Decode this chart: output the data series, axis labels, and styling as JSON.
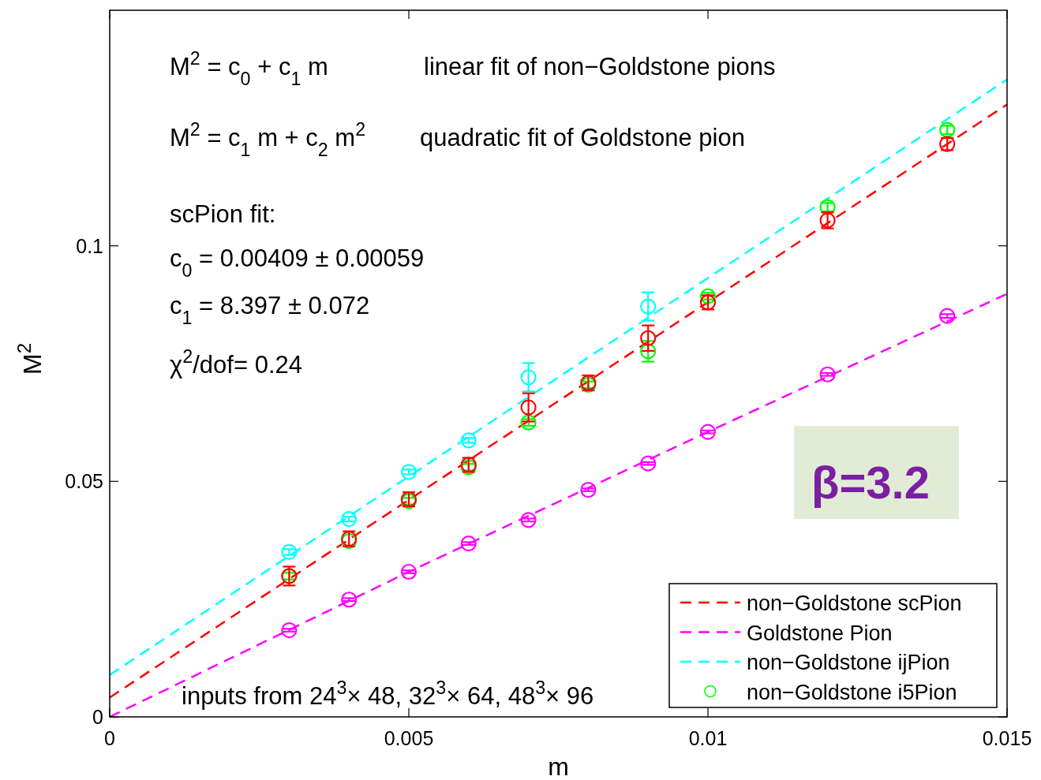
{
  "chart_data": {
    "type": "scatter",
    "xlabel": "m",
    "ylabel": "M$^{2}$",
    "xlim": [
      0,
      0.015
    ],
    "ylim": [
      0,
      0.15
    ],
    "xticks": [
      0,
      0.005,
      0.01,
      0.015
    ],
    "yticks": [
      0,
      0.05,
      0.1
    ],
    "grid": false,
    "legend": "bottom right",
    "annotations": [
      "M$^{2}$ = c$_{0}$ + c$_{1}$ m",
      "linear fit of non−Goldstone pions",
      "M$^{2}$ = c$_{1}$ m + c$_{2}$ m$^{2}$",
      "quadratic fit of Goldstone pion",
      "scPion fit:",
      "c$_{0}$ =  0.00409 ± 0.00059",
      "c$_{1}$ =  8.397 ± 0.072",
      "χ$^{2}$/dof= 0.24",
      "inputs from 24$^{3}$× 48, 32$^{3}$× 64, 48$^{3}$× 96",
      "β=3.2"
    ],
    "series": [
      {
        "type": "line",
        "name": "non−Goldstone scPion",
        "color": "#ff0000",
        "line_style": "dashed",
        "x": [
          0,
          0.015
        ],
        "values": [
          0.0041,
          0.13
        ],
        "marker": "none"
      },
      {
        "type": "line",
        "name": "Goldstone Pion",
        "color": "#ff00ff",
        "line_style": "dashed",
        "x": [
          0,
          0.005,
          0.01,
          0.015
        ],
        "values": [
          0,
          0.0308,
          0.0605,
          0.0898
        ],
        "marker": "none"
      },
      {
        "type": "line",
        "name": "non−Goldstone ijPion",
        "color": "#00ffff",
        "line_style": "dashed",
        "x": [
          0,
          0.015
        ],
        "values": [
          0.0089,
          0.1353
        ],
        "marker": "none"
      },
      {
        "type": "scatter",
        "name": "non−Goldstone i5Pion",
        "color": "#00ff00",
        "marker": "circle",
        "x": [
          0.003,
          0.004,
          0.005,
          0.006,
          0.007,
          0.008,
          0.009,
          0.01,
          0.012,
          0.014
        ],
        "values": [
          0.0299,
          0.0373,
          0.0458,
          0.053,
          0.0625,
          0.0705,
          0.0776,
          0.0893,
          0.1082,
          0.1246
        ],
        "errors": [
          0.0007,
          null,
          0.0007,
          0.0007,
          0.0007,
          0.0007,
          0.0022,
          0.0007,
          0.0009,
          0.0009
        ]
      },
      {
        "type": "scatter",
        "color": "#00ffff",
        "marker": "circle",
        "x": [
          0.003,
          0.004,
          0.005,
          0.006,
          0.007,
          0.009
        ],
        "values": [
          0.035,
          0.042,
          0.052,
          0.0587,
          0.0721,
          0.0871
        ],
        "errors": [
          0.0006,
          0.0005,
          0.0005,
          0.0005,
          0.003,
          0.003
        ]
      },
      {
        "type": "scatter",
        "color": "#ff00ff",
        "marker": "circle",
        "x": [
          0.003,
          0.004,
          0.005,
          0.006,
          0.007,
          0.008,
          0.009,
          0.01,
          0.012,
          0.014
        ],
        "values": [
          0.0184,
          0.0249,
          0.0308,
          0.0368,
          0.0418,
          0.0482,
          0.0538,
          0.0605,
          0.0727,
          0.0851
        ],
        "errors": [
          0.0003,
          0.0003,
          0.0003,
          0.0003,
          0.0003,
          0.0003,
          0.0003,
          0.0003,
          0.0003,
          0.0004
        ]
      },
      {
        "type": "scatter",
        "color": "#ff0000",
        "marker": "circle",
        "x": [
          0.003,
          0.004,
          0.005,
          0.006,
          0.007,
          0.008,
          0.009,
          0.01,
          0.012,
          0.014
        ],
        "values": [
          0.0299,
          0.0378,
          0.0462,
          0.0535,
          0.0657,
          0.0709,
          0.0804,
          0.088,
          0.1054,
          0.1216
        ],
        "errors": [
          0.002,
          0.0016,
          0.0015,
          0.0015,
          0.003,
          0.0016,
          0.0027,
          0.0015,
          0.0017,
          0.0013
        ]
      }
    ]
  }
}
